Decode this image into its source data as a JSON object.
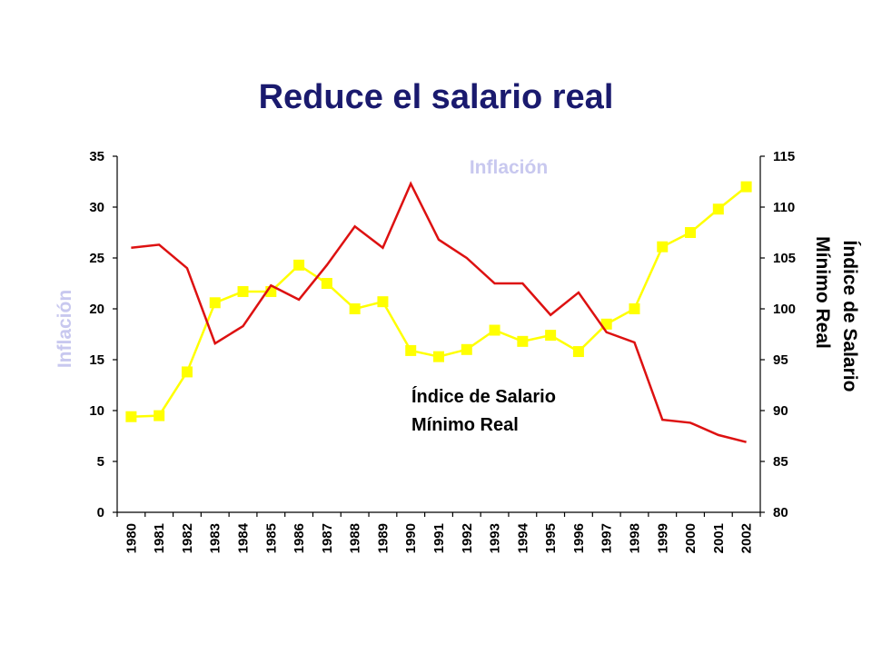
{
  "title": "Reduce el salario real",
  "chart_data": {
    "type": "line",
    "categories": [
      "1980",
      "1981",
      "1982",
      "1983",
      "1984",
      "1985",
      "1986",
      "1987",
      "1988",
      "1989",
      "1990",
      "1991",
      "1992",
      "1993",
      "1994",
      "1995",
      "1996",
      "1997",
      "1998",
      "1999",
      "2000",
      "2001",
      "2002"
    ],
    "series": [
      {
        "name": "Inflación",
        "axis": "left",
        "color": "#ffff00",
        "marker": "square",
        "values": [
          9.4,
          9.5,
          13.8,
          20.6,
          21.7,
          21.7,
          24.3,
          22.5,
          20.0,
          20.7,
          15.9,
          15.3,
          16.0,
          17.9,
          16.8,
          17.4,
          15.8,
          18.5,
          20.0,
          26.1,
          27.5,
          29.8,
          32.0
        ]
      },
      {
        "name": "Índice de Salario Mínimo Real",
        "axis": "right",
        "color": "#dd1111",
        "marker": "none",
        "values": [
          106.0,
          106.3,
          104.0,
          96.6,
          98.3,
          102.3,
          100.9,
          104.3,
          108.1,
          106.0,
          112.3,
          106.8,
          105.0,
          102.5,
          102.5,
          99.4,
          101.6,
          97.7,
          96.7,
          89.1,
          88.8,
          87.6,
          86.9
        ]
      }
    ],
    "left_axis": {
      "label": "Inflación",
      "ylim": [
        0,
        35
      ],
      "ticks": [
        "0",
        "5",
        "10",
        "15",
        "20",
        "25",
        "30",
        "35"
      ]
    },
    "right_axis": {
      "label_line1": "Índice de Salario",
      "label_line2": "Mínimo Real",
      "ylim": [
        80,
        115
      ],
      "ticks": [
        "80",
        "85",
        "90",
        "95",
        "100",
        "105",
        "110",
        "115"
      ]
    },
    "annotations": {
      "inflacion": "Inflación",
      "salario_line1": "Índice de Salario",
      "salario_line2": "Mínimo Real"
    },
    "grid": false,
    "legend": "none"
  }
}
